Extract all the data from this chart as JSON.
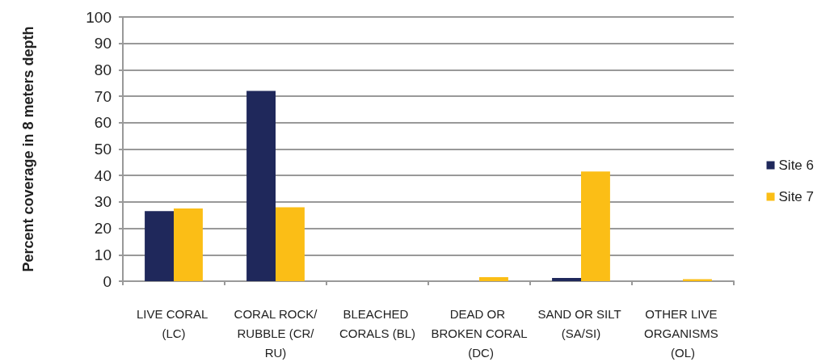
{
  "chart_data": {
    "type": "bar",
    "ylabel": "Percent coverage in 8 meters depth",
    "categories": [
      "LIVE CORAL (LC)",
      "CORAL ROCK/RUBBLE (CR/RU)",
      "BLEACHED CORALS (BL)",
      "DEAD OR BROKEN CORAL (DC)",
      "SAND OR SILT (SA/SI)",
      "OTHER LIVE ORGANISMS (OL)"
    ],
    "series": [
      {
        "name": "Site 6",
        "color": "#1f285b",
        "values": [
          26.5,
          72,
          0,
          0,
          1.2,
          0
        ]
      },
      {
        "name": "Site 7",
        "color": "#fbbe16",
        "values": [
          27.5,
          28,
          0,
          1.5,
          41.5,
          0.8
        ]
      }
    ],
    "ylim": [
      0,
      100
    ],
    "yticks": [
      0,
      10,
      20,
      30,
      40,
      50,
      60,
      70,
      80,
      90,
      100
    ],
    "grid": "y",
    "legend": "right"
  }
}
